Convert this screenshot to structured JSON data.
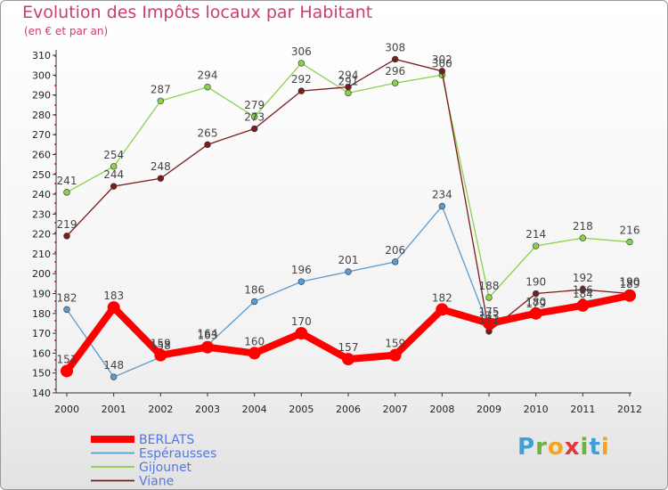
{
  "header": {
    "title": "Evolution des Impôts locaux par Habitant",
    "subtitle": "(en € et par an)"
  },
  "logo": {
    "letters": [
      "P",
      "r",
      "o",
      "x",
      "i",
      "t",
      "i"
    ],
    "colors": [
      "#3fa0d8",
      "#6cb33e",
      "#f7a21b",
      "#e2363c",
      "#6cb33e",
      "#3fa0d8",
      "#f7a21b"
    ]
  },
  "chart_data": {
    "type": "line",
    "title": "Evolution des Impôts locaux par Habitant",
    "subtitle": "(en € et par an)",
    "x": [
      "2000",
      "2001",
      "2002",
      "2003",
      "2004",
      "2005",
      "2006",
      "2007",
      "2008",
      "2009",
      "2010",
      "2011",
      "2012"
    ],
    "ylim": [
      140,
      310
    ],
    "yticks": [
      140,
      150,
      160,
      170,
      180,
      190,
      200,
      210,
      220,
      230,
      240,
      250,
      260,
      270,
      280,
      290,
      300,
      310
    ],
    "grid": false,
    "legend_position": "bottom-left",
    "series": [
      {
        "name": "BERLATS",
        "color": "#ff0000",
        "emphasis": true,
        "values": [
          151,
          183,
          159,
          163,
          160,
          170,
          157,
          159,
          182,
          175,
          180,
          184,
          189
        ],
        "labels": [
          "151",
          "183",
          "159",
          "163",
          "160",
          "170",
          "157",
          "159",
          "182",
          "175",
          "180",
          "184",
          "189"
        ]
      },
      {
        "name": "Espérausses",
        "color": "#5b9bd0",
        "emphasis": false,
        "values": [
          182,
          148,
          158,
          164,
          186,
          196,
          201,
          206,
          234,
          173,
          179,
          186,
          190
        ],
        "labels": [
          "182",
          "148",
          "158",
          "164",
          "186",
          "196",
          "201",
          "206",
          "234",
          "173",
          "179",
          "186",
          "190"
        ]
      },
      {
        "name": "Gijounet",
        "color": "#8bd14a",
        "emphasis": false,
        "values": [
          241,
          254,
          287,
          294,
          279,
          306,
          291,
          296,
          300,
          188,
          214,
          218,
          216
        ],
        "labels": [
          "241",
          "254",
          "287",
          "294",
          "279",
          "306",
          "291",
          "296",
          "300",
          "188",
          "214",
          "218",
          "216"
        ]
      },
      {
        "name": "Viane",
        "color": "#7a1c1c",
        "emphasis": false,
        "values": [
          219,
          244,
          248,
          265,
          273,
          292,
          294,
          308,
          302,
          171,
          190,
          192,
          190
        ],
        "labels": [
          "219",
          "244",
          "248",
          "265",
          "273",
          "292",
          "294",
          "308",
          "302",
          "171",
          "190",
          "192",
          "190"
        ]
      }
    ]
  }
}
